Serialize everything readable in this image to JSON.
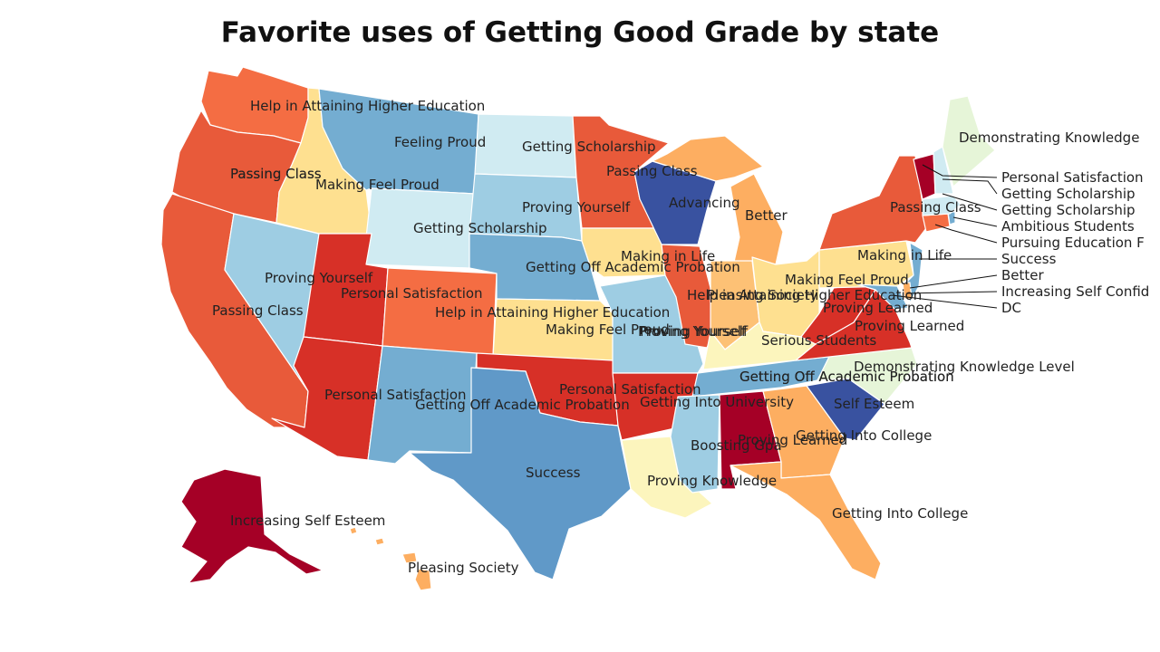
{
  "title": "Favorite uses of Getting Good Grade by state",
  "palette": {
    "dark_red": "#a50026",
    "red": "#d73027",
    "red_orange": "#e85a3a",
    "orange_red": "#f46d43",
    "orange": "#fdae61",
    "light_orange": "#fdc175",
    "yellow": "#fee090",
    "light_yellow": "#fcf5bd",
    "pale_green": "#e6f5d8",
    "pale_blue": "#d0ebf2",
    "light_blue": "#9ecde3",
    "blue": "#74add1",
    "mid_blue": "#6099c8",
    "dark_blue": "#3952a0"
  },
  "states": {
    "WA": "Passing Class",
    "OR": "Passing Class",
    "CA": "Passing Class",
    "NV": "Passing Class",
    "ID": "Making Feel Proud",
    "MT": "Feeling Proud",
    "WY": "Getting Scholarship",
    "UT": "Proving Yourself",
    "AZ": "Personal Satisfaction",
    "CO": "Personal Satisfaction",
    "NM": "Getting Off Academic Probation",
    "ND": "Getting Scholarship",
    "SD": "Proving Yourself",
    "NE": "Getting Off Academic Probation",
    "KS": "Making Feel Proud",
    "OK": "Personal Satisfaction",
    "TX": "Success",
    "MN": "Passing Class",
    "IA": "Making in Life",
    "MO": "Proving Yourself",
    "AR": "Getting Into University",
    "LA": "Proving Knowledge",
    "WI": "Advancing",
    "IL": "Help in Attaining Higher Education",
    "MI": "Better",
    "IN": "Pleasing Society",
    "OH": "Making Feel Proud",
    "KY": "Serious Students",
    "TN": "Getting Off Academic Probation",
    "MS": "Boosting Gpa",
    "AL": "Proving Learned",
    "GA": "Getting Into College",
    "FL": "Getting Into College",
    "SC": "Self Esteem",
    "NC": "Demonstrating Knowledge Level",
    "VA": "Proving Learned",
    "WV": "Proving Learned",
    "PA": "Making in Life",
    "NY": "Passing Class",
    "ME": "Demonstrating Knowledge",
    "VT": "Personal Satisfaction",
    "NH": "Getting Scholarship",
    "MA": "Getting Scholarship",
    "RI": "Ambitious Students",
    "CT": "Pursuing Education F",
    "NJ": "Success",
    "DE": "Better",
    "MD": "Increasing Self Confid",
    "DC": "DC",
    "AK": "Increasing Self Esteem",
    "HI": "Pleasing Society",
    "extra_1": "Help in Attaining Higher Education",
    "extra_2": "Help in Attaining Higher Education",
    "extra_3": "Proving Yourself",
    "extra_4": "Getting Off Academic Probation"
  }
}
